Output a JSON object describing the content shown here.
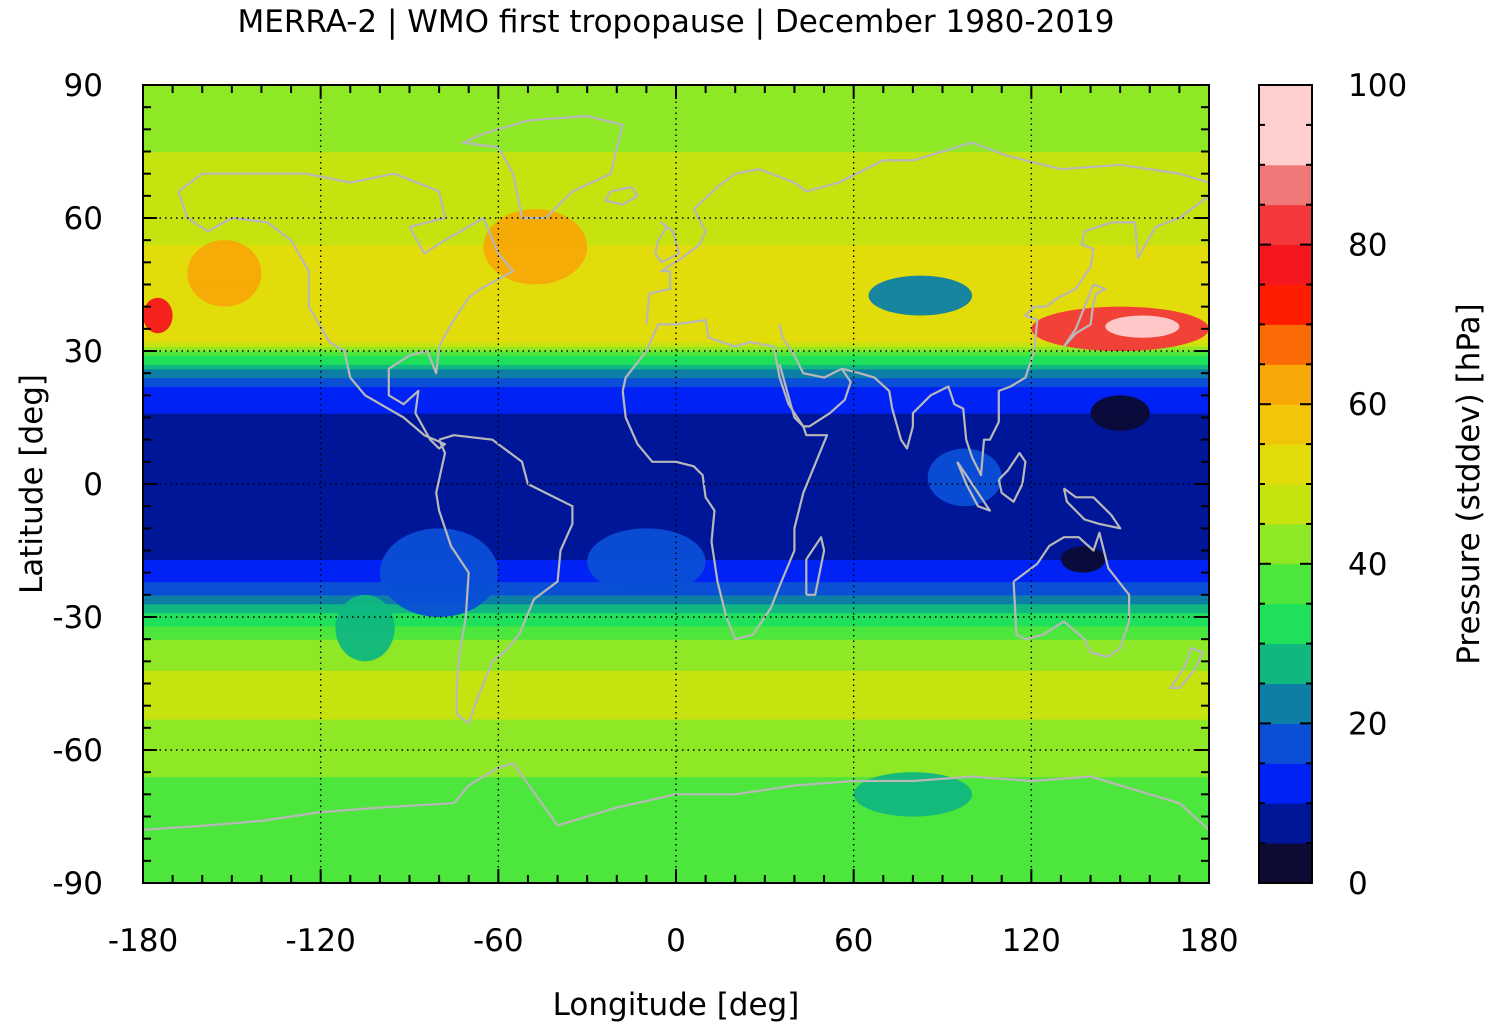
{
  "title": "MERRA-2 | WMO first tropopause | December 1980-2019",
  "x_axis": {
    "label": "Longitude [deg]",
    "range": [
      -180,
      180
    ],
    "ticks": [
      "-180",
      "-120",
      "-60",
      "0",
      "60",
      "120",
      "180"
    ],
    "tick_values": [
      -180,
      -120,
      -60,
      0,
      60,
      120,
      180
    ],
    "minor_step": 10
  },
  "y_axis": {
    "label": "Latitude [deg]",
    "range": [
      -90,
      90
    ],
    "ticks": [
      "-90",
      "-60",
      "-30",
      "0",
      "30",
      "60",
      "90"
    ],
    "tick_values": [
      -90,
      -60,
      -30,
      0,
      30,
      60,
      90
    ],
    "minor_step": 5
  },
  "colorbar": {
    "label": "Pressure (stddev) [hPa]",
    "range": [
      0,
      100
    ],
    "ticks": [
      "0",
      "20",
      "40",
      "60",
      "80",
      "100"
    ],
    "tick_values": [
      0,
      20,
      40,
      60,
      80,
      100
    ],
    "levels": [
      {
        "from": 0,
        "to": 5,
        "color": "#0b0b33"
      },
      {
        "from": 5,
        "to": 10,
        "color": "#001699"
      },
      {
        "from": 10,
        "to": 15,
        "color": "#0022f5"
      },
      {
        "from": 15,
        "to": 20,
        "color": "#0a4fd6"
      },
      {
        "from": 20,
        "to": 25,
        "color": "#0d7fa6"
      },
      {
        "from": 25,
        "to": 30,
        "color": "#10b780"
      },
      {
        "from": 30,
        "to": 35,
        "color": "#1fe05a"
      },
      {
        "from": 35,
        "to": 40,
        "color": "#4ce63c"
      },
      {
        "from": 40,
        "to": 45,
        "color": "#8ee826"
      },
      {
        "from": 45,
        "to": 50,
        "color": "#c6e20f"
      },
      {
        "from": 50,
        "to": 55,
        "color": "#e2dc0b"
      },
      {
        "from": 55,
        "to": 60,
        "color": "#f2c40a"
      },
      {
        "from": 60,
        "to": 65,
        "color": "#f7a806"
      },
      {
        "from": 65,
        "to": 70,
        "color": "#fb6b05"
      },
      {
        "from": 70,
        "to": 75,
        "color": "#ff1d00"
      },
      {
        "from": 75,
        "to": 80,
        "color": "#f5171e"
      },
      {
        "from": 80,
        "to": 85,
        "color": "#f2383a"
      },
      {
        "from": 85,
        "to": 90,
        "color": "#f07878"
      },
      {
        "from": 90,
        "to": 95,
        "color": "#ffcfcf"
      }
    ]
  },
  "map": {
    "grid": "dotted",
    "coastlines_color": "#b8b8b8",
    "gridline_color": "#000000"
  },
  "chart_data": {
    "type": "heatmap",
    "title": "MERRA-2 | WMO first tropopause | December 1980-2019",
    "xlabel": "Longitude [deg]",
    "ylabel": "Latitude [deg]",
    "colorbar_label": "Pressure (stddev) [hPa]",
    "xlim": [
      -180,
      180
    ],
    "ylim": [
      -90,
      90
    ],
    "clim": [
      0,
      100
    ],
    "zonal_profile": {
      "lat": [
        -90,
        -75,
        -60,
        -45,
        -35,
        -28,
        -22,
        -15,
        -5,
        5,
        15,
        22,
        27,
        32,
        40,
        50,
        60,
        75,
        90
      ],
      "value": [
        35,
        36,
        43,
        47,
        40,
        28,
        14,
        8,
        7,
        7,
        9,
        14,
        28,
        50,
        55,
        52,
        47,
        45,
        42
      ]
    },
    "features": [
      {
        "lon_range": [
          -180,
          -170
        ],
        "lat_range": [
          34,
          42
        ],
        "value": 75
      },
      {
        "lon_range": [
          -165,
          -140
        ],
        "lat_range": [
          40,
          55
        ],
        "value": 62
      },
      {
        "lon_range": [
          -65,
          -30
        ],
        "lat_range": [
          45,
          62
        ],
        "value": 62
      },
      {
        "lon_range": [
          65,
          100
        ],
        "lat_range": [
          38,
          47
        ],
        "value": 22
      },
      {
        "lon_range": [
          120,
          180
        ],
        "lat_range": [
          30,
          40
        ],
        "value": 80
      },
      {
        "lon_range": [
          145,
          170
        ],
        "lat_range": [
          33,
          38
        ],
        "value": 95
      },
      {
        "lon_range": [
          140,
          160
        ],
        "lat_range": [
          12,
          20
        ],
        "value": 3
      },
      {
        "lon_range": [
          130,
          145
        ],
        "lat_range": [
          -14,
          -20
        ],
        "value": 3
      },
      {
        "lon_range": [
          85,
          110
        ],
        "lat_range": [
          -5,
          8
        ],
        "value": 15
      },
      {
        "lon_range": [
          -100,
          -60
        ],
        "lat_range": [
          -30,
          -10
        ],
        "value": 15
      },
      {
        "lon_range": [
          -30,
          10
        ],
        "lat_range": [
          -25,
          -10
        ],
        "value": 18
      },
      {
        "lon_range": [
          -115,
          -95
        ],
        "lat_range": [
          -40,
          -25
        ],
        "value": 28
      },
      {
        "lon_range": [
          60,
          100
        ],
        "lat_range": [
          -75,
          -65
        ],
        "value": 28
      }
    ]
  }
}
